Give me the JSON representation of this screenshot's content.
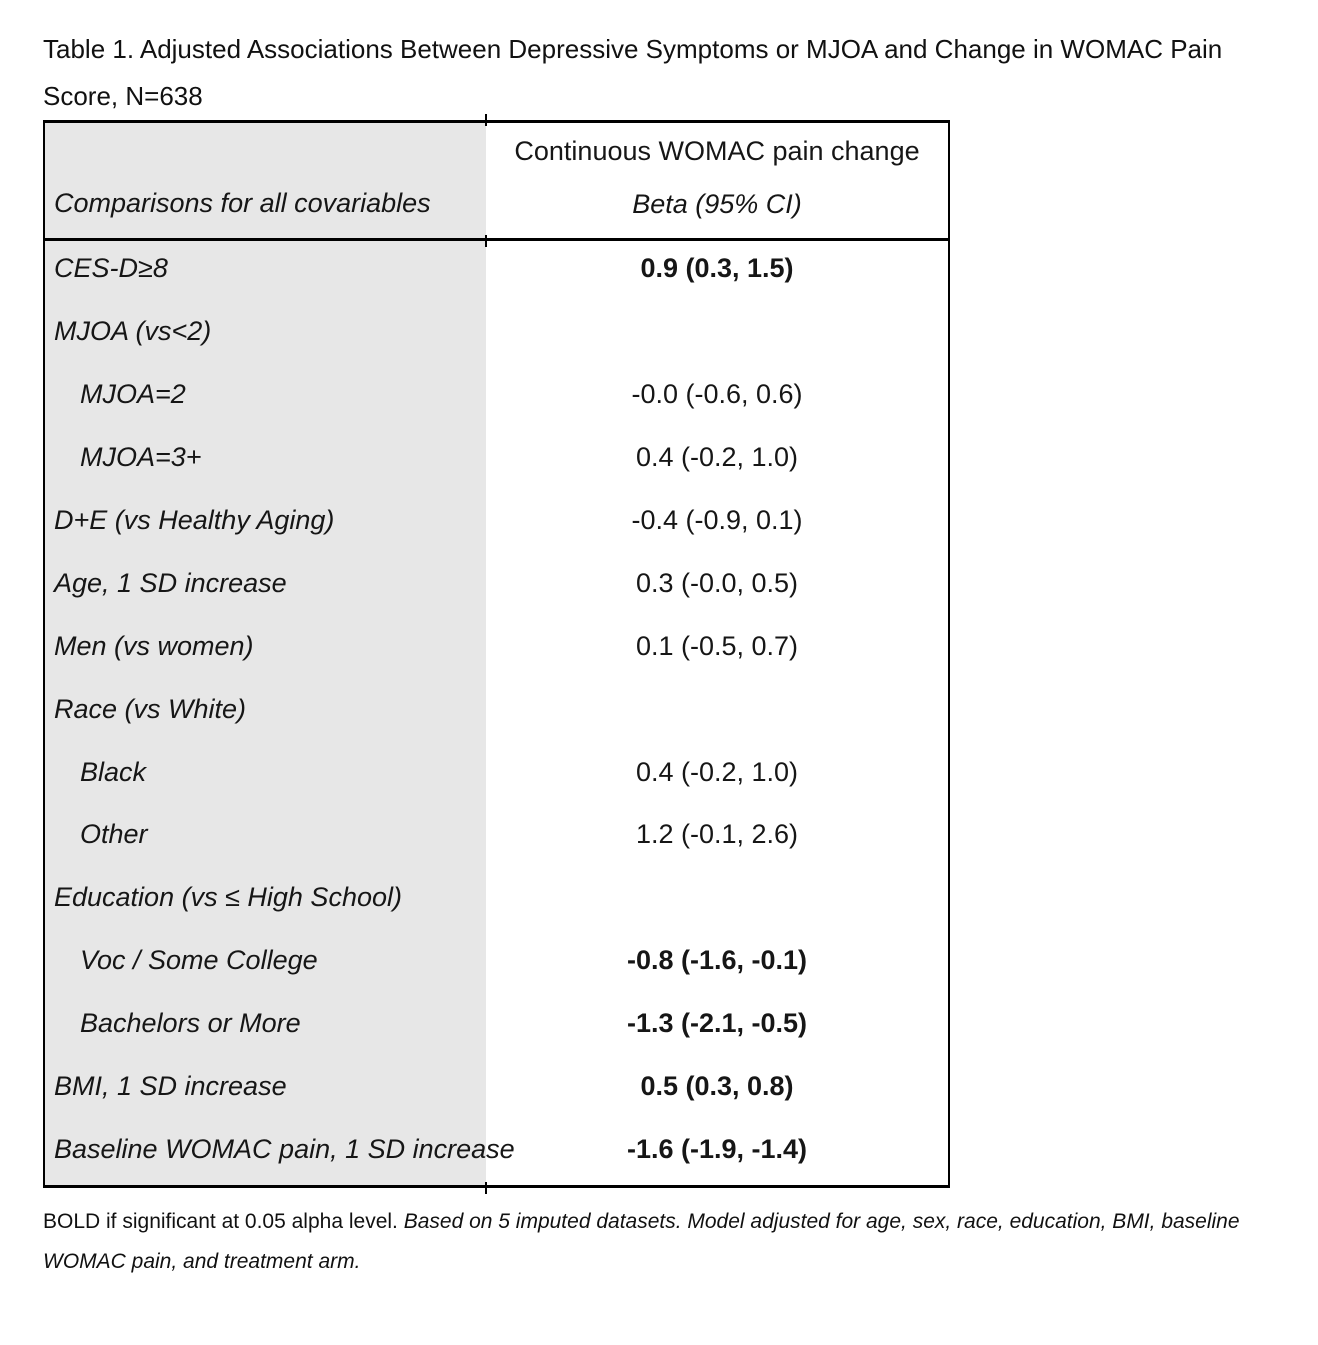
{
  "page": {
    "title_line1": "Table 1. Adjusted Associations Between Depressive Symptoms or MJOA and Change in WOMAC Pain",
    "title_line2": "Score, N=638"
  },
  "table": {
    "header": {
      "col1_label": "Comparisons for all covariables",
      "col2_title": "Continuous WOMAC pain change",
      "col2_subtitle": "Beta (95% CI)"
    },
    "rows": [
      {
        "label": "CES-D≥8",
        "indent": false,
        "value": "0.9 (0.3, 1.5)",
        "bold": true
      },
      {
        "label": "MJOA (vs<2)",
        "indent": false,
        "value": "",
        "bold": false
      },
      {
        "label": "MJOA=2",
        "indent": true,
        "value": "-0.0 (-0.6, 0.6)",
        "bold": false
      },
      {
        "label": "MJOA=3+",
        "indent": true,
        "value": "0.4 (-0.2, 1.0)",
        "bold": false
      },
      {
        "label": "D+E (vs Healthy Aging)",
        "indent": false,
        "value": "-0.4 (-0.9, 0.1)",
        "bold": false
      },
      {
        "label": "Age, 1 SD increase",
        "indent": false,
        "value": "0.3 (-0.0, 0.5)",
        "bold": false
      },
      {
        "label": "Men (vs women)",
        "indent": false,
        "value": "0.1 (-0.5, 0.7)",
        "bold": false
      },
      {
        "label": "Race (vs White)",
        "indent": false,
        "value": "",
        "bold": false
      },
      {
        "label": "Black",
        "indent": true,
        "value": "0.4 (-0.2, 1.0)",
        "bold": false
      },
      {
        "label": "Other",
        "indent": true,
        "value": "1.2 (-0.1, 2.6)",
        "bold": false
      },
      {
        "label": "Education (vs ≤ High School)",
        "indent": false,
        "value": "",
        "bold": false
      },
      {
        "label": "Voc / Some College",
        "indent": true,
        "value": "-0.8 (-1.6, -0.1)",
        "bold": true
      },
      {
        "label": "Bachelors or More",
        "indent": true,
        "value": "-1.3 (-2.1, -0.5)",
        "bold": true
      },
      {
        "label": "BMI, 1 SD increase",
        "indent": false,
        "value": "0.5 (0.3, 0.8)",
        "bold": true
      },
      {
        "label": "Baseline WOMAC pain, 1 SD increase",
        "indent": false,
        "value": "-1.6 (-1.9, -1.4)",
        "bold": true
      }
    ]
  },
  "footnote": {
    "regular": "BOLD if significant at 0.05 alpha level. ",
    "italic_line1": "Based on 5 imputed datasets. Model adjusted for age, sex, race, education, BMI, baseline",
    "italic_line2": "WOMAC pain, and treatment arm.",
    "full_text": "BOLD if significant at 0.05 alpha level. Based on 5 imputed datasets. Model adjusted for age, sex, race, education, BMI, baseline WOMAC pain, and treatment arm."
  },
  "colors": {
    "label_column_bg": "#e7e7e7",
    "border": "#000000",
    "text": "#111111",
    "page_bg": "#ffffff"
  }
}
